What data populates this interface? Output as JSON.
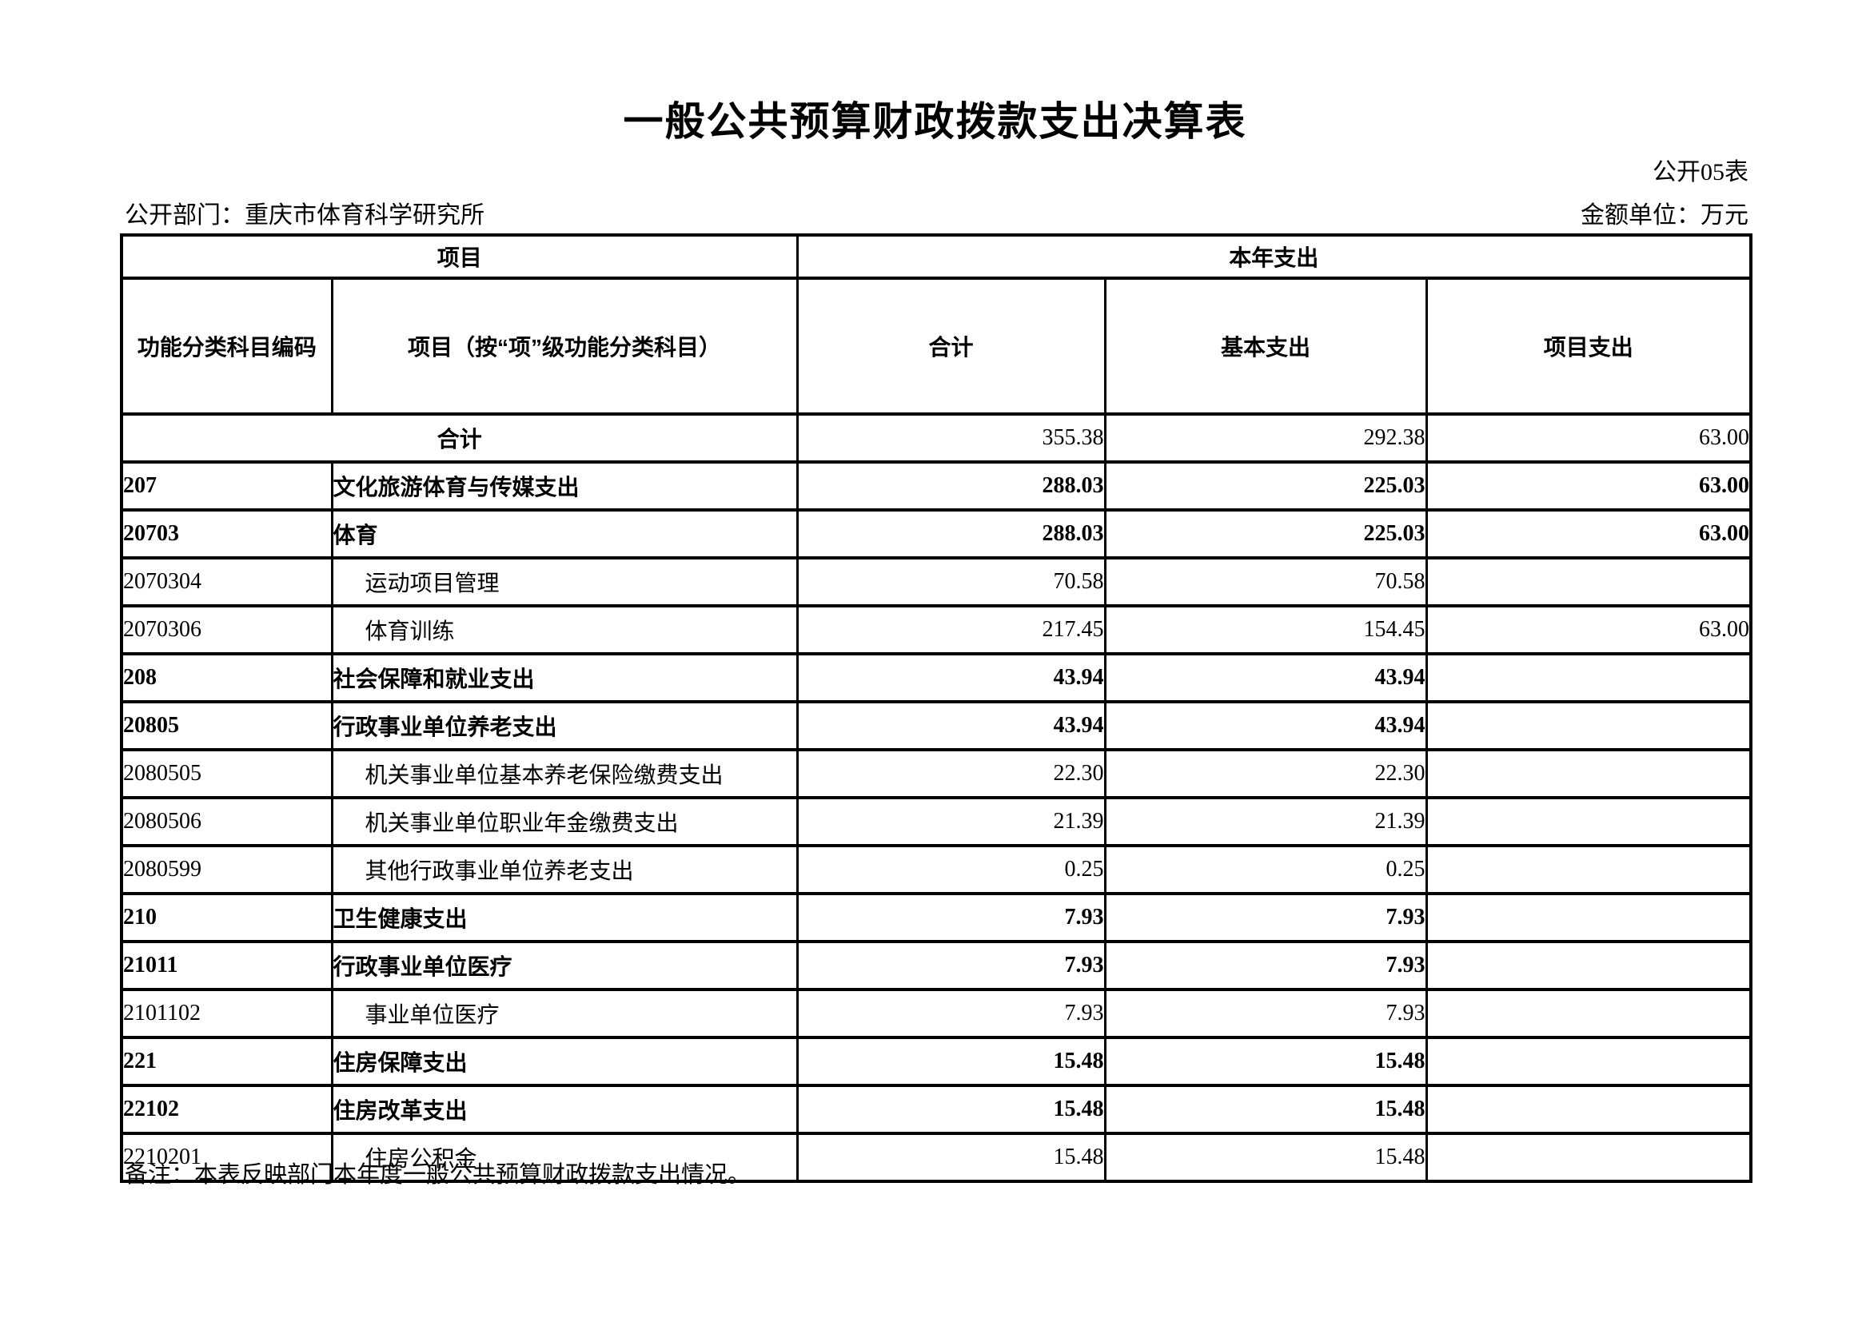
{
  "page": {
    "title": "一般公共预算财政拨款支出决算表",
    "table_number": "公开05表",
    "department_label": "公开部门：重庆市体育科学研究所",
    "unit_label": "金额单位：万元",
    "note": "备注：本表反映部门本年度一般公共预算财政拨款支出情况。"
  },
  "table": {
    "header": {
      "group_item": "项目",
      "group_year_expenditure": "本年支出",
      "col_code": "功能分类科目编码",
      "col_item": "项目（按“项”级功能分类科目）",
      "col_total": "合计",
      "col_basic": "基本支出",
      "col_project": "项目支出"
    },
    "total_row": {
      "label": "合计",
      "total": "355.38",
      "basic": "292.38",
      "project": "63.00"
    },
    "rows": [
      {
        "code": "207",
        "name": "文化旅游体育与传媒支出",
        "total": "288.03",
        "basic": "225.03",
        "project": "63.00",
        "bold": true
      },
      {
        "code": "20703",
        "name": "体育",
        "total": "288.03",
        "basic": "225.03",
        "project": "63.00",
        "bold": true
      },
      {
        "code": "2070304",
        "name": "运动项目管理",
        "total": "70.58",
        "basic": "70.58",
        "project": "",
        "bold": false
      },
      {
        "code": "2070306",
        "name": "体育训练",
        "total": "217.45",
        "basic": "154.45",
        "project": "63.00",
        "bold": false
      },
      {
        "code": "208",
        "name": "社会保障和就业支出",
        "total": "43.94",
        "basic": "43.94",
        "project": "",
        "bold": true
      },
      {
        "code": "20805",
        "name": "行政事业单位养老支出",
        "total": "43.94",
        "basic": "43.94",
        "project": "",
        "bold": true
      },
      {
        "code": "2080505",
        "name": "机关事业单位基本养老保险缴费支出",
        "total": "22.30",
        "basic": "22.30",
        "project": "",
        "bold": false
      },
      {
        "code": "2080506",
        "name": "机关事业单位职业年金缴费支出",
        "total": "21.39",
        "basic": "21.39",
        "project": "",
        "bold": false
      },
      {
        "code": "2080599",
        "name": "其他行政事业单位养老支出",
        "total": "0.25",
        "basic": "0.25",
        "project": "",
        "bold": false
      },
      {
        "code": "210",
        "name": "卫生健康支出",
        "total": "7.93",
        "basic": "7.93",
        "project": "",
        "bold": true
      },
      {
        "code": "21011",
        "name": "行政事业单位医疗",
        "total": "7.93",
        "basic": "7.93",
        "project": "",
        "bold": true
      },
      {
        "code": "2101102",
        "name": "事业单位医疗",
        "total": "7.93",
        "basic": "7.93",
        "project": "",
        "bold": false
      },
      {
        "code": "221",
        "name": "住房保障支出",
        "total": "15.48",
        "basic": "15.48",
        "project": "",
        "bold": true
      },
      {
        "code": "22102",
        "name": "住房改革支出",
        "total": "15.48",
        "basic": "15.48",
        "project": "",
        "bold": true
      },
      {
        "code": "2210201",
        "name": "住房公积金",
        "total": "15.48",
        "basic": "15.48",
        "project": "",
        "bold": false
      }
    ]
  }
}
